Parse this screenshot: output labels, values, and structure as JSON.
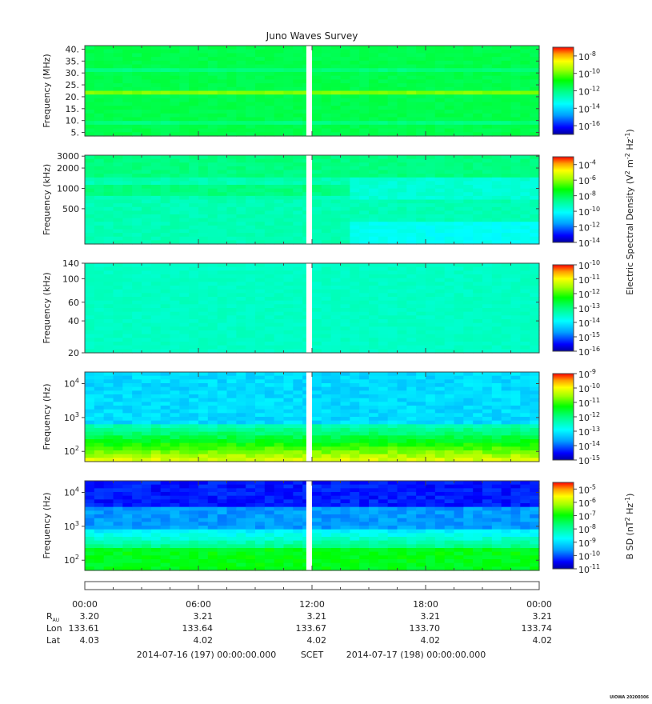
{
  "chart_data": {
    "type": "heatmap",
    "title": "Juno Waves Survey",
    "panels": [
      {
        "ylabel": "Frequency (MHz)",
        "yscale": "linear",
        "yticks": [
          "40.",
          "35.",
          "30.",
          "25.",
          "20.",
          "15.",
          "10.",
          "5."
        ],
        "ytick_values": [
          40,
          35,
          30,
          25,
          20,
          15,
          10,
          5
        ],
        "ylim": [
          3.5,
          41.5
        ],
        "colorbar_ticks": [
          "-8",
          "-10",
          "-12",
          "-14",
          "-16"
        ],
        "colorbar_tick_values": [
          -8,
          -10,
          -12,
          -14,
          -16
        ],
        "colorbar_range": [
          -17,
          -7
        ],
        "colorbar_label": ""
      },
      {
        "ylabel": "Frequency (kHz)",
        "yscale": "log",
        "yticks": [
          "3000",
          "2000",
          "1000",
          "500"
        ],
        "ytick_values": [
          3000,
          2000,
          1000,
          500
        ],
        "ylim": [
          150,
          3100
        ],
        "colorbar_ticks": [
          "-4",
          "-6",
          "-8",
          "-10",
          "-12",
          "-14"
        ],
        "colorbar_tick_values": [
          -4,
          -6,
          -8,
          -10,
          -12,
          -14
        ],
        "colorbar_range": [
          -14,
          -3
        ],
        "colorbar_label": "Electric Spectral Density (V"
      },
      {
        "ylabel": "Frequency (kHz)",
        "yscale": "log",
        "yticks": [
          "140",
          "100",
          "60",
          "40",
          "20"
        ],
        "ytick_values": [
          140,
          100,
          60,
          40,
          20
        ],
        "ylim": [
          20,
          140
        ],
        "colorbar_ticks": [
          "-10",
          "-11",
          "-12",
          "-13",
          "-14",
          "-15",
          "-16"
        ],
        "colorbar_tick_values": [
          -10,
          -11,
          -12,
          -13,
          -14,
          -15,
          -16
        ],
        "colorbar_range": [
          -16,
          -10
        ],
        "colorbar_label": ""
      },
      {
        "ylabel": "Frequency (Hz)",
        "yscale": "log",
        "yticks": [
          "4",
          "3",
          "2"
        ],
        "ytick_values": [
          10000,
          1000,
          100
        ],
        "ylim": [
          50,
          22000
        ],
        "colorbar_ticks": [
          "-9",
          "-10",
          "-11",
          "-12",
          "-13",
          "-14",
          "-15"
        ],
        "colorbar_tick_values": [
          -9,
          -10,
          -11,
          -12,
          -13,
          -14,
          -15
        ],
        "colorbar_range": [
          -15,
          -9
        ],
        "colorbar_label": ""
      },
      {
        "ylabel": "Frequency (Hz)",
        "yscale": "log",
        "yticks": [
          "4",
          "3",
          "2"
        ],
        "ytick_values": [
          10000,
          1000,
          100
        ],
        "ylim": [
          50,
          22000
        ],
        "colorbar_ticks": [
          "-5",
          "-6",
          "-7",
          "-8",
          "-9",
          "-10",
          "-11"
        ],
        "colorbar_tick_values": [
          -5,
          -6,
          -7,
          -8,
          -9,
          -10,
          -11
        ],
        "colorbar_range": [
          -11,
          -4.5
        ],
        "colorbar_label": "B SD (nT"
      }
    ],
    "colorbar_label_electric": {
      "prefix": "Electric Spectral Density (V",
      "sup1": "2",
      "mid": " m",
      "sup2": "-2",
      "mid2": " Hz",
      "sup3": "-1",
      "suffix": ")"
    },
    "colorbar_label_magnetic": {
      "prefix": "B SD (nT",
      "sup1": "2",
      "mid": " Hz",
      "sup2": "-1",
      "suffix": ")"
    },
    "colorbar_base": "10",
    "x_time_labels": [
      "00:00",
      "06:00",
      "12:00",
      "18:00",
      "00:00"
    ],
    "x_time_hours": [
      0,
      6,
      12,
      18,
      24
    ],
    "data_gap_hours": [
      11.7,
      12.0
    ],
    "ephemeris": {
      "rows": [
        {
          "label": "R",
          "label_sub": "AU",
          "values": [
            "3.20",
            "3.21",
            "3.21",
            "3.21",
            "3.21"
          ]
        },
        {
          "label": "Lon",
          "label_sub": "",
          "values": [
            "133.61",
            "133.64",
            "133.67",
            "133.70",
            "133.74"
          ]
        },
        {
          "label": "Lat",
          "label_sub": "",
          "values": [
            "4.03",
            "4.02",
            "4.02",
            "4.02",
            "4.02"
          ]
        }
      ]
    },
    "time_footer": {
      "start": "2014-07-16 (197) 00:00:00.000",
      "scet": "SCET",
      "end": "2014-07-17 (198) 00:00:00.000"
    },
    "credit": "UIOWA 20200306"
  }
}
